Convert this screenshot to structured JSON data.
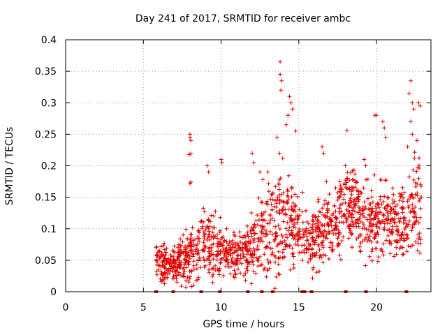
{
  "chart_data": {
    "type": "scatter",
    "title": "Day 241 of 2017, SRMTID for receiver ambc",
    "xlabel": "GPS time / hours",
    "ylabel": "SRMTID / TECUs",
    "xlim": [
      0,
      23.5
    ],
    "ylim": [
      0,
      0.4
    ],
    "xticks": [
      0,
      5,
      10,
      15,
      20
    ],
    "xtick_labels": [
      "0",
      "5",
      "10",
      "15",
      "20"
    ],
    "yticks": [
      0,
      0.05,
      0.1,
      0.15,
      0.2,
      0.25,
      0.3,
      0.35,
      0.4
    ],
    "ytick_labels": [
      "0",
      "0.05",
      "0.1",
      "0.15",
      "0.2",
      "0.25",
      "0.3",
      "0.35",
      "0.4"
    ],
    "grid": true,
    "marker": "plus",
    "color": "#e00000",
    "trend": {
      "x": [
        5.8,
        6.5,
        7.0,
        7.5,
        8.0,
        8.5,
        9.0,
        9.5,
        10.0,
        10.5,
        11.0,
        11.5,
        12.0,
        12.5,
        13.0,
        13.5,
        14.0,
        14.5,
        15.0,
        15.5,
        16.0,
        16.5,
        17.0,
        17.5,
        18.0,
        18.5,
        19.0,
        19.5,
        20.0,
        20.5,
        21.0,
        21.5,
        22.0,
        22.5,
        22.9
      ],
      "mean": [
        0.05,
        0.045,
        0.045,
        0.05,
        0.06,
        0.07,
        0.075,
        0.08,
        0.065,
        0.06,
        0.06,
        0.065,
        0.07,
        0.085,
        0.1,
        0.11,
        0.115,
        0.11,
        0.1,
        0.08,
        0.085,
        0.1,
        0.1,
        0.11,
        0.13,
        0.13,
        0.12,
        0.11,
        0.12,
        0.12,
        0.12,
        0.11,
        0.11,
        0.14,
        0.14
      ],
      "spread": [
        0.02,
        0.025,
        0.025,
        0.03,
        0.035,
        0.04,
        0.045,
        0.05,
        0.035,
        0.025,
        0.025,
        0.03,
        0.04,
        0.05,
        0.06,
        0.07,
        0.07,
        0.06,
        0.045,
        0.04,
        0.04,
        0.045,
        0.045,
        0.05,
        0.055,
        0.055,
        0.05,
        0.045,
        0.055,
        0.05,
        0.05,
        0.045,
        0.05,
        0.06,
        0.06
      ],
      "n_points": 1500
    },
    "outliers": [
      {
        "x": 8.0,
        "y": 0.25
      },
      {
        "x": 8.0,
        "y": 0.245
      },
      {
        "x": 8.05,
        "y": 0.24
      },
      {
        "x": 7.95,
        "y": 0.218
      },
      {
        "x": 8.05,
        "y": 0.219
      },
      {
        "x": 8.0,
        "y": 0.172
      },
      {
        "x": 8.05,
        "y": 0.174
      },
      {
        "x": 9.1,
        "y": 0.2
      },
      {
        "x": 9.2,
        "y": 0.19
      },
      {
        "x": 10.0,
        "y": 0.21
      },
      {
        "x": 10.05,
        "y": 0.205
      },
      {
        "x": 12.0,
        "y": 0.22
      },
      {
        "x": 12.1,
        "y": 0.205
      },
      {
        "x": 12.5,
        "y": 0.19
      },
      {
        "x": 13.8,
        "y": 0.365
      },
      {
        "x": 13.8,
        "y": 0.345
      },
      {
        "x": 13.9,
        "y": 0.335
      },
      {
        "x": 13.85,
        "y": 0.32
      },
      {
        "x": 14.4,
        "y": 0.31
      },
      {
        "x": 14.5,
        "y": 0.3
      },
      {
        "x": 14.6,
        "y": 0.29
      },
      {
        "x": 14.3,
        "y": 0.28
      },
      {
        "x": 14.2,
        "y": 0.265
      },
      {
        "x": 14.8,
        "y": 0.255
      },
      {
        "x": 13.6,
        "y": 0.245
      },
      {
        "x": 16.5,
        "y": 0.23
      },
      {
        "x": 16.6,
        "y": 0.22
      },
      {
        "x": 18.1,
        "y": 0.256
      },
      {
        "x": 18.0,
        "y": 0.2
      },
      {
        "x": 19.2,
        "y": 0.21
      },
      {
        "x": 19.3,
        "y": 0.2
      },
      {
        "x": 19.9,
        "y": 0.28
      },
      {
        "x": 20.0,
        "y": 0.28
      },
      {
        "x": 20.4,
        "y": 0.27
      },
      {
        "x": 20.5,
        "y": 0.26
      },
      {
        "x": 20.6,
        "y": 0.245
      },
      {
        "x": 22.2,
        "y": 0.335
      },
      {
        "x": 22.1,
        "y": 0.315
      },
      {
        "x": 22.3,
        "y": 0.3
      },
      {
        "x": 22.4,
        "y": 0.29
      },
      {
        "x": 22.2,
        "y": 0.27
      },
      {
        "x": 22.3,
        "y": 0.25
      },
      {
        "x": 22.7,
        "y": 0.3
      },
      {
        "x": 22.8,
        "y": 0.295
      },
      {
        "x": 22.6,
        "y": 0.24
      },
      {
        "x": 22.0,
        "y": 0.23
      }
    ],
    "zero_markers": [
      5.8,
      6.9,
      8.7,
      9.9,
      11.7,
      12.6,
      13.3,
      15.2,
      15.35,
      15.8,
      18.0,
      19.3,
      21.9
    ]
  }
}
